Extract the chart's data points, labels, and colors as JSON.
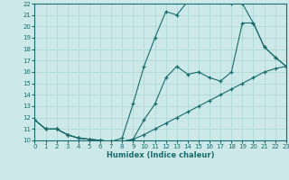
{
  "xlabel": "Humidex (Indice chaleur)",
  "xlim": [
    0,
    23
  ],
  "ylim": [
    10,
    22
  ],
  "xticks": [
    0,
    1,
    2,
    3,
    4,
    5,
    6,
    7,
    8,
    9,
    10,
    11,
    12,
    13,
    14,
    15,
    16,
    17,
    18,
    19,
    20,
    21,
    22,
    23
  ],
  "yticks": [
    10,
    11,
    12,
    13,
    14,
    15,
    16,
    17,
    18,
    19,
    20,
    21,
    22
  ],
  "bg_color": "#cce8e8",
  "line_color": "#1a6b6b",
  "grid_color": "#b0d8d8",
  "line1_x": [
    0,
    1,
    2,
    3,
    4,
    5,
    6,
    7,
    8,
    9,
    10,
    11,
    12,
    13,
    14,
    15,
    16,
    17,
    18,
    19,
    20,
    21,
    22,
    23
  ],
  "line1_y": [
    11.8,
    11.0,
    11.0,
    10.5,
    10.2,
    10.1,
    10.0,
    9.9,
    9.9,
    10.1,
    10.5,
    11.0,
    11.5,
    12.0,
    12.5,
    13.0,
    13.5,
    14.0,
    14.5,
    15.0,
    15.5,
    16.0,
    16.3,
    16.5
  ],
  "line2_x": [
    0,
    1,
    2,
    3,
    4,
    5,
    6,
    7,
    8,
    9,
    10,
    11,
    12,
    13,
    14,
    15,
    16,
    17,
    18,
    19,
    20,
    21,
    22,
    23
  ],
  "line2_y": [
    11.8,
    11.0,
    11.0,
    10.5,
    10.2,
    10.1,
    10.0,
    9.9,
    10.2,
    13.2,
    16.5,
    19.0,
    21.3,
    21.0,
    22.2,
    22.2,
    22.2,
    22.2,
    22.0,
    22.0,
    20.3,
    18.2,
    17.3,
    16.5
  ],
  "line3_x": [
    0,
    1,
    2,
    3,
    4,
    5,
    6,
    7,
    8,
    9,
    10,
    11,
    12,
    13,
    14,
    15,
    16,
    17,
    18,
    19,
    20,
    21,
    22,
    23
  ],
  "line3_y": [
    11.8,
    11.0,
    11.0,
    10.5,
    10.2,
    10.1,
    10.0,
    9.9,
    9.9,
    10.1,
    11.8,
    13.2,
    15.5,
    16.5,
    15.8,
    16.0,
    15.5,
    15.2,
    16.0,
    20.3,
    20.3,
    18.2,
    17.3,
    16.5
  ]
}
